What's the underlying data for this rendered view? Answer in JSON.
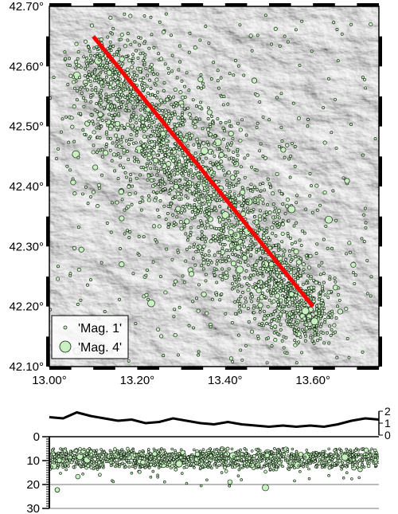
{
  "map": {
    "lon_range": [
      13.0,
      13.75
    ],
    "lat_range": [
      42.1,
      42.7
    ],
    "lat_ticks": [
      {
        "value": 42.1,
        "label": "42.10°"
      },
      {
        "value": 42.2,
        "label": "42.20°"
      },
      {
        "value": 42.3,
        "label": "42.30°"
      },
      {
        "value": 42.4,
        "label": "42.40°"
      },
      {
        "value": 42.5,
        "label": "42.50°"
      },
      {
        "value": 42.6,
        "label": "42.60°"
      },
      {
        "value": 42.7,
        "label": "42.70°"
      }
    ],
    "lon_ticks": [
      {
        "value": 13.0,
        "label": "13.00°"
      },
      {
        "value": 13.2,
        "label": "13.20°"
      },
      {
        "value": 13.4,
        "label": "13.40°"
      },
      {
        "value": 13.6,
        "label": "13.60°"
      }
    ],
    "profile_line": {
      "start": [
        13.1,
        42.65
      ],
      "end": [
        13.6,
        42.2
      ],
      "color": "#ff0000"
    },
    "legend": {
      "placement": "bottom-left",
      "entries": [
        {
          "label": "'Mag. 1'",
          "magnitude": 1
        },
        {
          "label": "'Mag. 4'",
          "magnitude": 4
        }
      ]
    },
    "event_fill": "#c8f0c0",
    "event_stroke": "#1a2a1a",
    "relief_color": "#c8c8c8"
  },
  "section": {
    "depth_range": [
      0,
      30
    ],
    "depth_ticks": [
      {
        "value": 0,
        "label": "0"
      },
      {
        "value": 10,
        "label": "10"
      },
      {
        "value": 20,
        "label": "20"
      },
      {
        "value": 30,
        "label": "30"
      }
    ],
    "gridlines": [
      20,
      30
    ],
    "elevation_ticks": [
      {
        "value": 0,
        "label": "0"
      },
      {
        "value": 1,
        "label": "1"
      },
      {
        "value": 2,
        "label": "2"
      }
    ],
    "elevation_profile": [
      1.5,
      1.4,
      1.9,
      1.6,
      1.4,
      1.2,
      1.3,
      1.0,
      1.1,
      1.4,
      1.2,
      1.0,
      0.9,
      1.1,
      0.9,
      0.8,
      0.7,
      0.8,
      0.7,
      0.8,
      0.7,
      0.9,
      1.2,
      1.4,
      1.3
    ]
  }
}
